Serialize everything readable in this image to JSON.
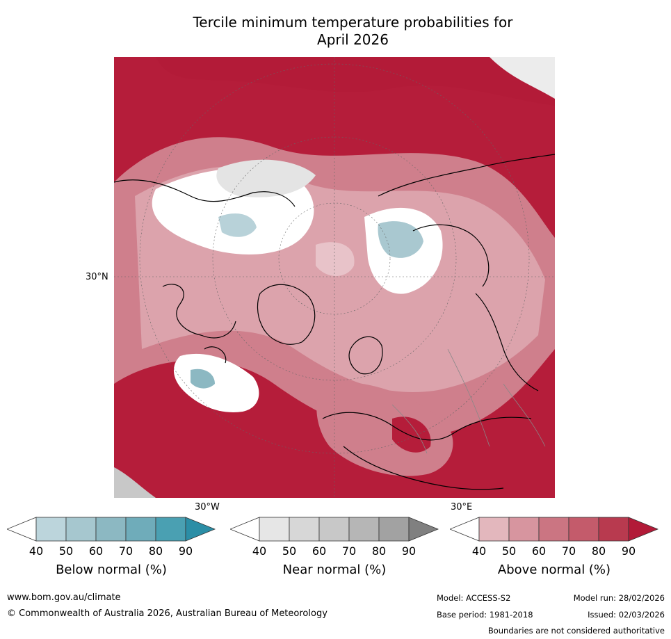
{
  "title": {
    "line1": "Tercile minimum temperature probabilities for",
    "line2": "April 2026"
  },
  "map": {
    "lat_label": "30°N",
    "lon_label_west": "30°W",
    "lon_label_east": "30°E",
    "region": "Northern Hemisphere polar view"
  },
  "colorbars": [
    {
      "name": "below",
      "label": "Below normal (%)",
      "ticks": [
        "40",
        "50",
        "60",
        "70",
        "80",
        "90"
      ],
      "colors": [
        "#bcd5dc",
        "#a6c7cf",
        "#8cb8c2",
        "#6facba",
        "#4aa0b2",
        "#2b8ea6"
      ]
    },
    {
      "name": "near",
      "label": "Near normal (%)",
      "ticks": [
        "40",
        "50",
        "60",
        "70",
        "80",
        "90"
      ],
      "colors": [
        "#e6e6e6",
        "#d7d7d7",
        "#c8c8c8",
        "#b6b6b6",
        "#a2a2a2",
        "#808080"
      ]
    },
    {
      "name": "above",
      "label": "Above normal (%)",
      "ticks": [
        "40",
        "50",
        "60",
        "70",
        "80",
        "90"
      ],
      "colors": [
        "#e3b7bd",
        "#d7959f",
        "#cb7582",
        "#c45b6b",
        "#b83a4f",
        "#b21a38"
      ]
    }
  ],
  "footer": {
    "website": "www.bom.gov.au/climate",
    "copyright": "© Commonwealth of Australia 2026, Australian Bureau of Meteorology",
    "model": "Model: ACCESS-S2",
    "model_run": "Model run: 28/02/2026",
    "base_period": "Base period: 1981-2018",
    "issued": "Issued: 02/03/2026",
    "disclaimer": "Boundaries are not considered authoritative"
  }
}
